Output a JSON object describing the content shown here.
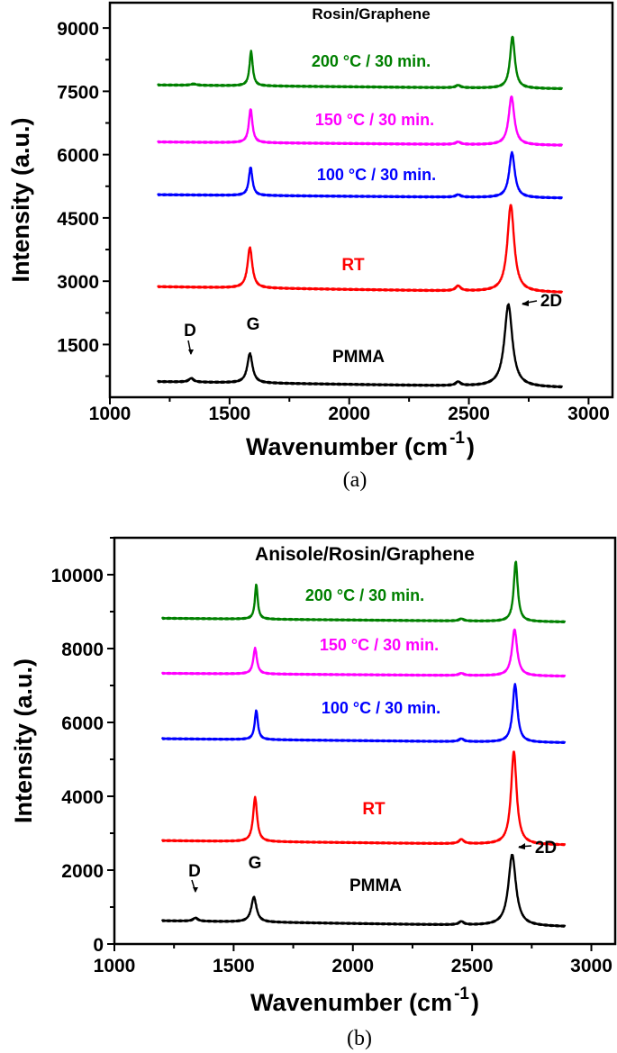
{
  "chart_data": [
    {
      "type": "line",
      "panel_caption": "(a)",
      "title": "Rosin/Graphene",
      "xlabel": "Wavenumber (cm",
      "xlabel_sup": "-1",
      "xlabel_close": ")",
      "ylabel": "Intensity (a.u.)",
      "xlim": [
        1000,
        3100
      ],
      "ylim": [
        250,
        9600
      ],
      "xticks": [
        1000,
        1500,
        2000,
        2500,
        3000
      ],
      "yticks": [
        1500,
        3000,
        4500,
        6000,
        7500,
        9000
      ],
      "grid": false,
      "legend": "none",
      "peak_labels": {
        "d": "D",
        "g": "G",
        "2d": "2D"
      },
      "series": [
        {
          "name": "PMMA",
          "color": "#000000",
          "baseline": [
            620,
            480
          ],
          "peaks": [
            {
              "center": 1340,
              "height": 90,
              "width": 12
            },
            {
              "center": 1585,
              "height": 700,
              "width": 13
            },
            {
              "center": 2455,
              "height": 90,
              "width": 12
            },
            {
              "center": 2665,
              "height": 1950,
              "width": 20
            }
          ]
        },
        {
          "name": "RT",
          "color": "#ff0000",
          "baseline": [
            2870,
            2730
          ],
          "peaks": [
            {
              "center": 1585,
              "height": 960,
              "width": 12
            },
            {
              "center": 2455,
              "height": 120,
              "width": 12
            },
            {
              "center": 2675,
              "height": 2060,
              "width": 17
            }
          ]
        },
        {
          "name": "100 °C / 30 min.",
          "color": "#0000ff",
          "baseline": [
            5050,
            4970
          ],
          "peaks": [
            {
              "center": 1588,
              "height": 670,
              "width": 9
            },
            {
              "center": 2455,
              "height": 60,
              "width": 12
            },
            {
              "center": 2680,
              "height": 1070,
              "width": 14
            }
          ]
        },
        {
          "name": "150 °C / 30 min.",
          "color": "#ff00ff",
          "baseline": [
            6300,
            6220
          ],
          "peaks": [
            {
              "center": 1588,
              "height": 800,
              "width": 9
            },
            {
              "center": 2455,
              "height": 60,
              "width": 12
            },
            {
              "center": 2678,
              "height": 1150,
              "width": 14
            }
          ]
        },
        {
          "name": "200 °C / 30 min.",
          "color": "#008000",
          "baseline": [
            7650,
            7560
          ],
          "peaks": [
            {
              "center": 1350,
              "height": 30,
              "width": 15
            },
            {
              "center": 1590,
              "height": 820,
              "width": 8
            },
            {
              "center": 2455,
              "height": 60,
              "width": 12
            },
            {
              "center": 2682,
              "height": 1230,
              "width": 12
            }
          ]
        }
      ]
    },
    {
      "type": "line",
      "panel_caption": "(b)",
      "title": "Anisole/Rosin/Graphene",
      "xlabel": "Wavenumber (cm",
      "xlabel_sup": "-1",
      "xlabel_close": ")",
      "ylabel": "Intensity (a.u.)",
      "xlim": [
        1000,
        3100
      ],
      "ylim": [
        0,
        11000
      ],
      "xticks": [
        1000,
        1500,
        2000,
        2500,
        3000
      ],
      "yticks": [
        0,
        2000,
        4000,
        6000,
        8000,
        10000
      ],
      "grid": false,
      "legend": "none",
      "peak_labels": {
        "d": "D",
        "g": "G",
        "2d": "2D"
      },
      "series": [
        {
          "name": "PMMA",
          "color": "#000000",
          "baseline": [
            630,
            470
          ],
          "peaks": [
            {
              "center": 1340,
              "height": 90,
              "width": 12
            },
            {
              "center": 1585,
              "height": 680,
              "width": 13
            },
            {
              "center": 2455,
              "height": 90,
              "width": 12
            },
            {
              "center": 2668,
              "height": 1930,
              "width": 19
            }
          ]
        },
        {
          "name": "RT",
          "color": "#ff0000",
          "baseline": [
            2800,
            2680
          ],
          "peaks": [
            {
              "center": 1590,
              "height": 1200,
              "width": 10
            },
            {
              "center": 2455,
              "height": 120,
              "width": 12
            },
            {
              "center": 2675,
              "height": 2520,
              "width": 14
            }
          ]
        },
        {
          "name": "100 °C / 30 min.",
          "color": "#0000ff",
          "baseline": [
            5560,
            5450
          ],
          "peaks": [
            {
              "center": 1595,
              "height": 790,
              "width": 8
            },
            {
              "center": 2455,
              "height": 80,
              "width": 12
            },
            {
              "center": 2680,
              "height": 1570,
              "width": 12
            }
          ]
        },
        {
          "name": "150 °C / 30 min.",
          "color": "#ff00ff",
          "baseline": [
            7330,
            7250
          ],
          "peaks": [
            {
              "center": 1590,
              "height": 700,
              "width": 9
            },
            {
              "center": 2455,
              "height": 60,
              "width": 12
            },
            {
              "center": 2678,
              "height": 1260,
              "width": 13
            }
          ]
        },
        {
          "name": "200 °C / 30 min.",
          "color": "#008000",
          "baseline": [
            8820,
            8720
          ],
          "peaks": [
            {
              "center": 1595,
              "height": 940,
              "width": 7
            },
            {
              "center": 2455,
              "height": 60,
              "width": 12
            },
            {
              "center": 2683,
              "height": 1620,
              "width": 10
            }
          ]
        }
      ]
    }
  ]
}
